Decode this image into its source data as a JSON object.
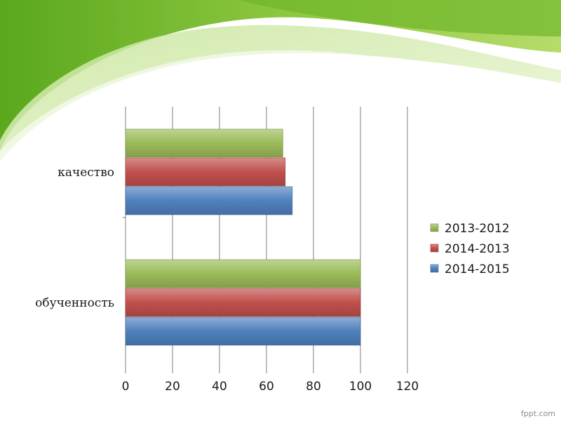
{
  "watermark": "fppt.com",
  "colors": {
    "green": "#9bbb59",
    "red": "#c0504d",
    "blue": "#4f81bd"
  },
  "chart_data": {
    "type": "bar",
    "orientation": "horizontal",
    "categories": [
      "обученность",
      "качество"
    ],
    "series": [
      {
        "name": "2014-2015",
        "values": [
          100,
          71
        ],
        "color": "#4f81bd"
      },
      {
        "name": "2014-2013",
        "values": [
          100,
          68
        ],
        "color": "#c0504d"
      },
      {
        "name": "2013-2012",
        "values": [
          100,
          67
        ],
        "color": "#9bbb59"
      }
    ],
    "legend_order": [
      "2013-2012",
      "2014-2013",
      "2014-2015"
    ],
    "xlim": [
      0,
      120
    ],
    "xticks": [
      0,
      20,
      40,
      60,
      80,
      100,
      120
    ],
    "grid": true,
    "legend_position": "right"
  }
}
